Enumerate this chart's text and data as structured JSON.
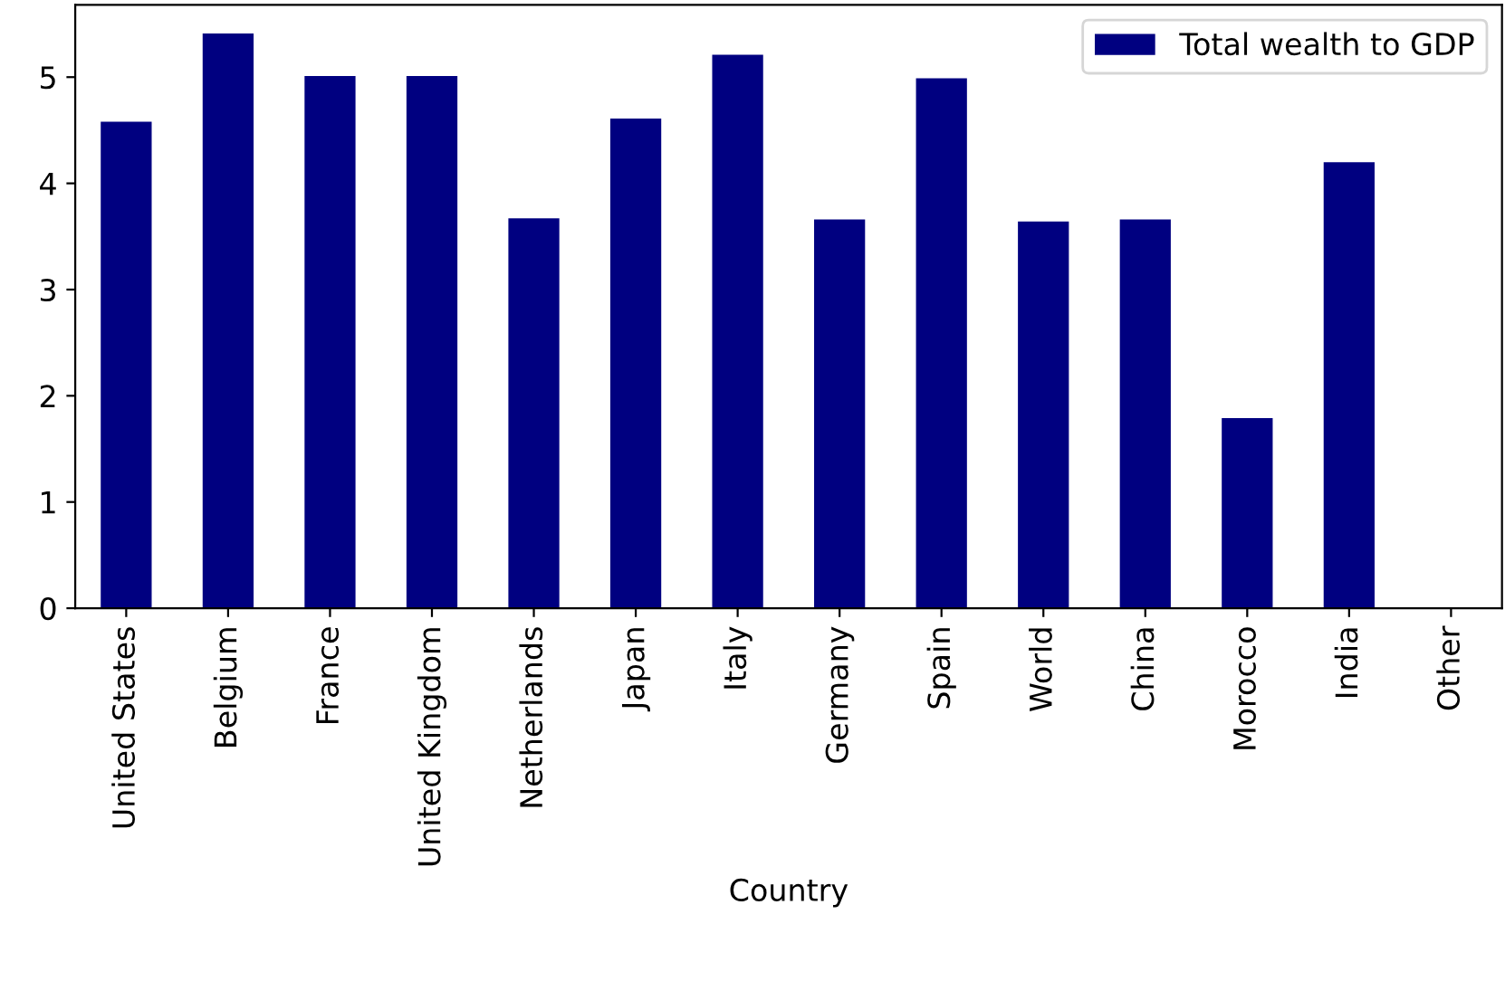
{
  "chart_data": {
    "type": "bar",
    "xlabel": "Country",
    "categories": [
      "United States",
      "Belgium",
      "France",
      "United Kingdom",
      "Netherlands",
      "Japan",
      "Italy",
      "Germany",
      "Spain",
      "World",
      "China",
      "Morocco",
      "India",
      "Other"
    ],
    "series": [
      {
        "name": "Total wealth to GDP",
        "color": "#000080",
        "values": [
          4.58,
          5.41,
          5.01,
          5.01,
          3.67,
          4.61,
          5.21,
          3.66,
          4.99,
          3.64,
          3.66,
          1.79,
          4.2,
          null
        ]
      }
    ],
    "ylim": [
      0,
      5.68
    ],
    "yticks": [
      0,
      1,
      2,
      3,
      4,
      5
    ],
    "grid": false,
    "legend": "top right"
  }
}
